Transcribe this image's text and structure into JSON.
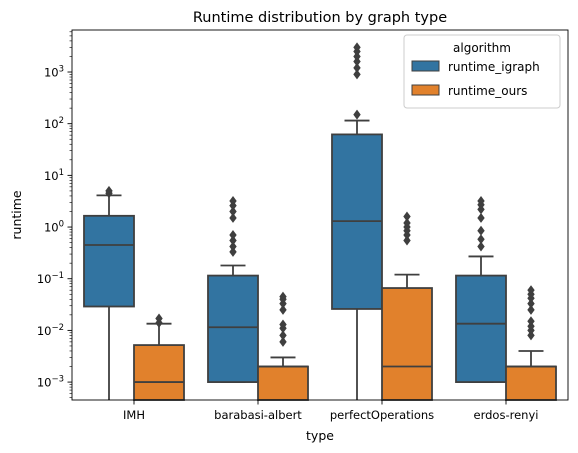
{
  "chart_data": {
    "type": "box",
    "title": "Runtime distribution by graph type",
    "xlabel": "type",
    "ylabel": "runtime",
    "yscale": "log",
    "ylim": [
      0.00045,
      6500
    ],
    "ytick_values": [
      0.001,
      0.01,
      0.1,
      1,
      10,
      100,
      1000
    ],
    "ytick_labels": [
      {
        "base": "10",
        "exp": "−3"
      },
      {
        "base": "10",
        "exp": "−2"
      },
      {
        "base": "10",
        "exp": "−1"
      },
      {
        "base": "10",
        "exp": "0"
      },
      {
        "base": "10",
        "exp": "1"
      },
      {
        "base": "10",
        "exp": "2"
      },
      {
        "base": "10",
        "exp": "3"
      }
    ],
    "categories": [
      "IMH",
      "barabasi-albert",
      "perfectOperations",
      "erdos-renyi"
    ],
    "legend": {
      "title": "algorithm",
      "position": "top-right"
    },
    "series": [
      {
        "name": "runtime_igraph",
        "color": "#3274a1",
        "boxes": [
          {
            "whisker_low": 0.0004,
            "q1": 0.029,
            "median": 0.45,
            "q3": 1.65,
            "whisker_high": 4.1,
            "outliers": [
              4.5,
              5.0
            ]
          },
          {
            "whisker_low": 0.001,
            "q1": 0.001,
            "median": 0.0115,
            "q3": 0.115,
            "whisker_high": 0.18,
            "outliers": [
              0.33,
              0.42,
              0.55,
              0.7,
              1.5,
              2.0,
              2.6,
              3.2
            ]
          },
          {
            "whisker_low": 0.0004,
            "q1": 0.026,
            "median": 1.3,
            "q3": 62,
            "whisker_high": 115,
            "outliers": [
              150,
              900,
              1200,
              1600,
              2000,
              2500,
              3000
            ]
          },
          {
            "whisker_low": 0.001,
            "q1": 0.001,
            "median": 0.0135,
            "q3": 0.115,
            "whisker_high": 0.27,
            "outliers": [
              0.42,
              0.58,
              0.85,
              1.5,
              2.2,
              2.7,
              3.2
            ]
          }
        ]
      },
      {
        "name": "runtime_ours",
        "color": "#e1812c",
        "boxes": [
          {
            "whisker_low": 0.0004,
            "q1": 0.0004,
            "median": 0.001,
            "q3": 0.0052,
            "whisker_high": 0.0135,
            "outliers": [
              0.014,
              0.017
            ]
          },
          {
            "whisker_low": 0.0004,
            "q1": 0.0004,
            "median": 0.002,
            "q3": 0.002,
            "whisker_high": 0.003,
            "outliers": [
              0.006,
              0.008,
              0.011,
              0.013,
              0.025,
              0.033,
              0.04,
              0.045
            ]
          },
          {
            "whisker_low": 0.0004,
            "q1": 0.0004,
            "median": 0.002,
            "q3": 0.066,
            "whisker_high": 0.12,
            "outliers": [
              0.55,
              0.7,
              0.85,
              1.0,
              1.2,
              1.6
            ]
          },
          {
            "whisker_low": 0.0004,
            "q1": 0.0004,
            "median": 0.002,
            "q3": 0.002,
            "whisker_high": 0.004,
            "outliers": [
              0.008,
              0.01,
              0.012,
              0.015,
              0.025,
              0.033,
              0.042,
              0.05,
              0.06
            ]
          }
        ]
      }
    ]
  }
}
